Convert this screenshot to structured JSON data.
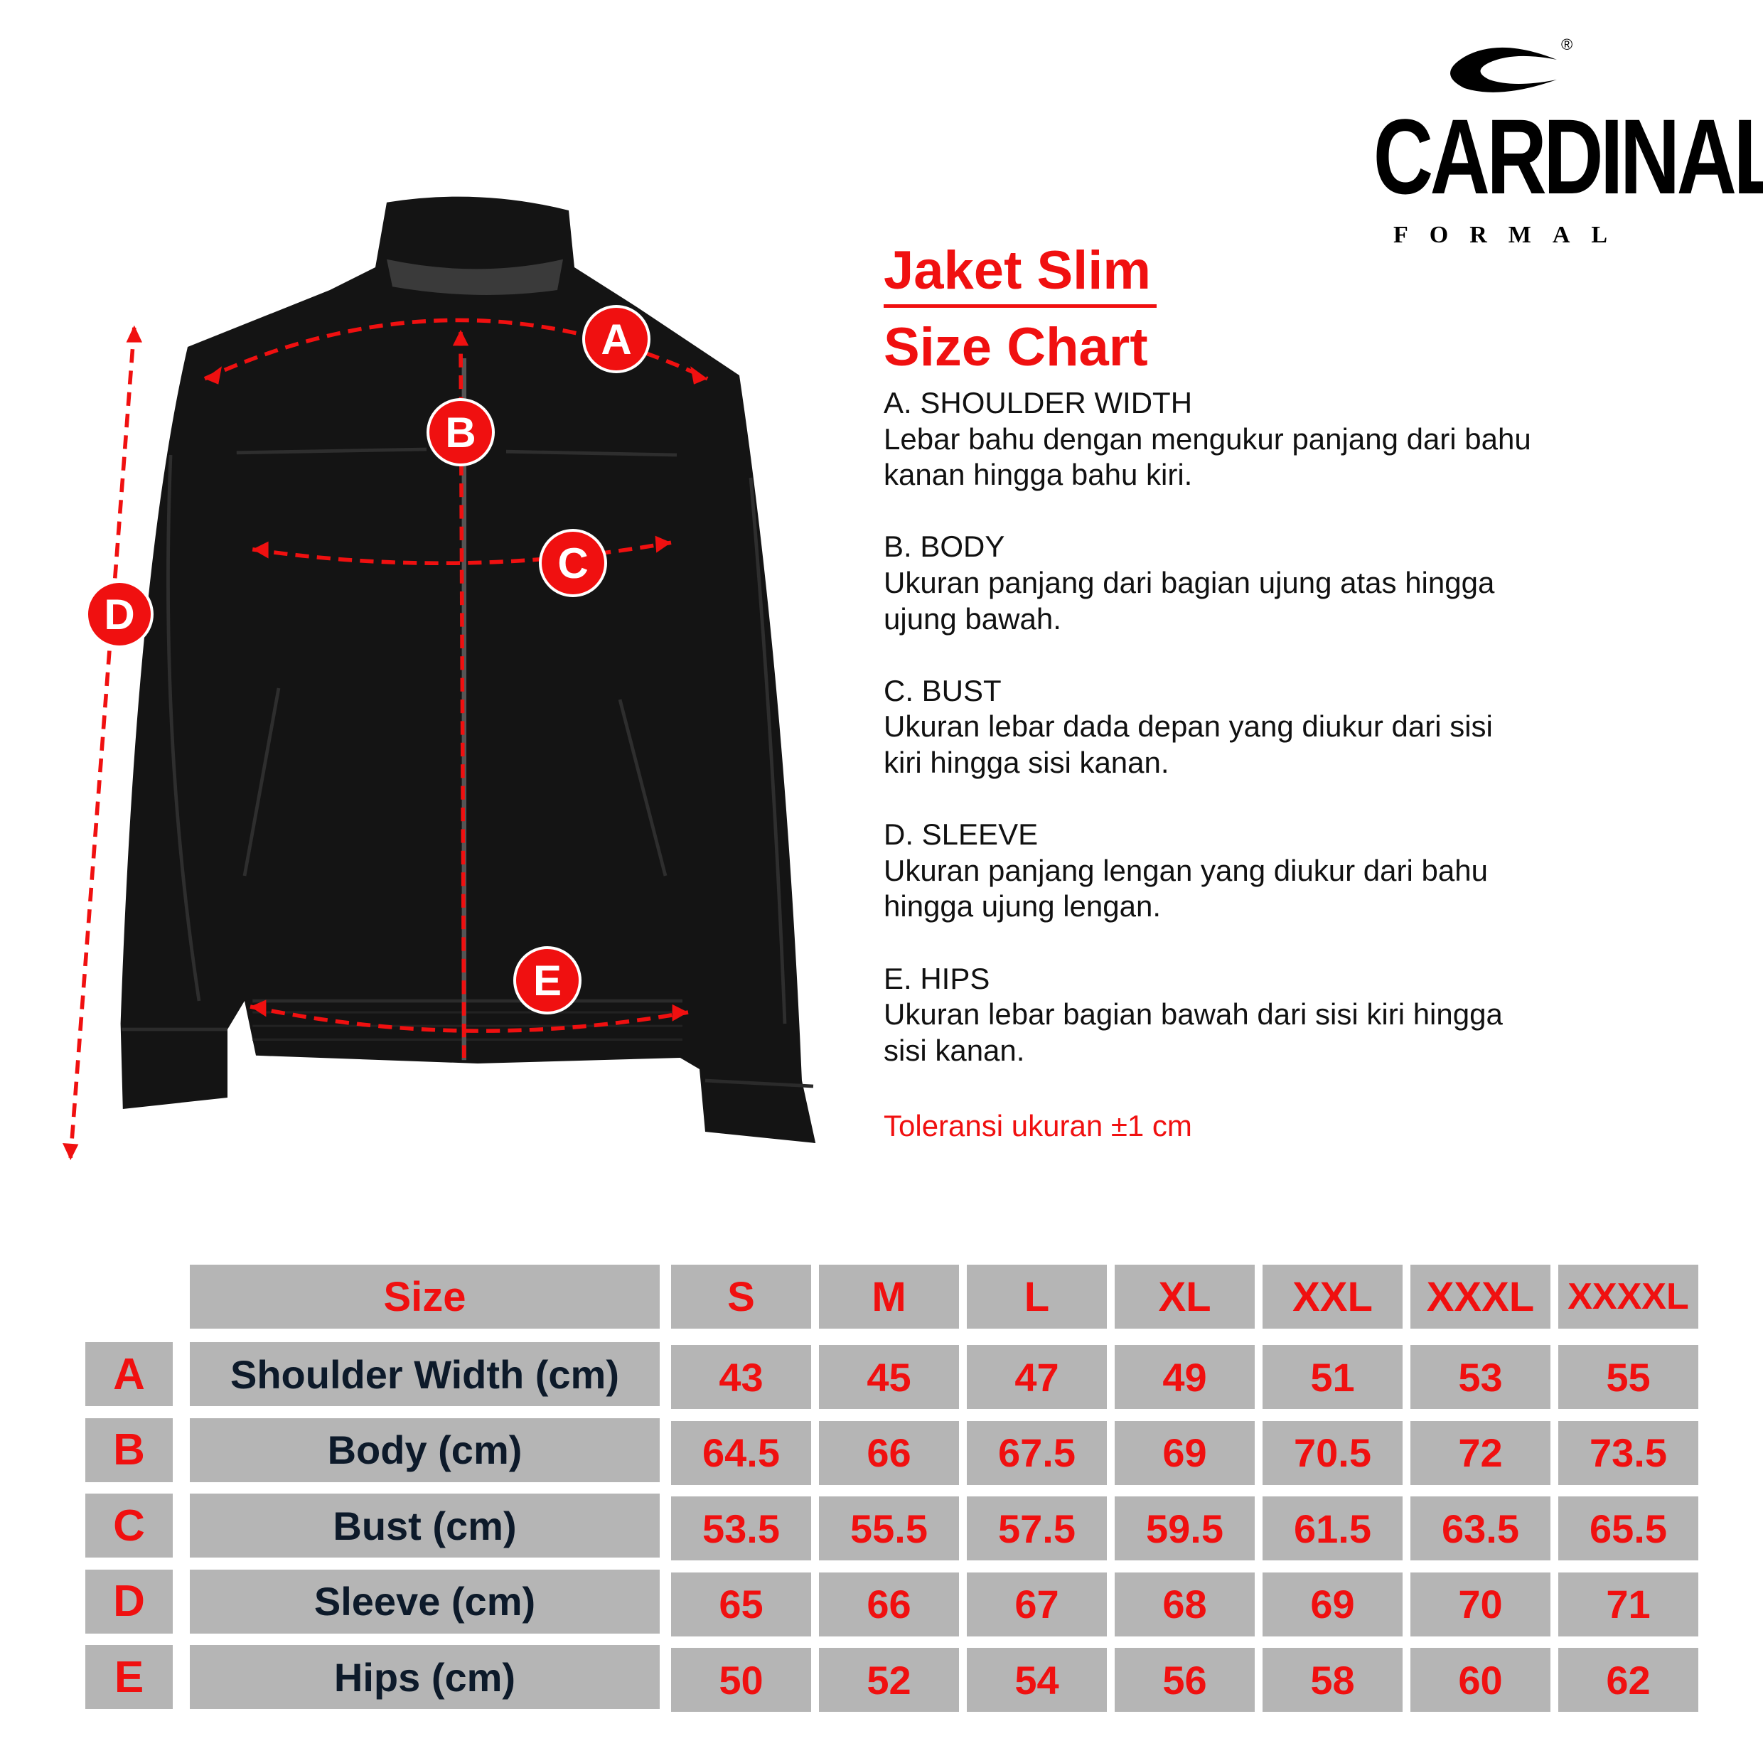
{
  "brand": {
    "logo_text": "CARDINAL",
    "logo_sub": "FORMAL",
    "registered": "®"
  },
  "title": "Jaket Slim",
  "subtitle": "Size Chart",
  "markers": [
    "A",
    "B",
    "C",
    "D",
    "E"
  ],
  "descriptions": [
    {
      "heading": "A. SHOULDER WIDTH",
      "lines": [
        "Lebar bahu dengan mengukur panjang dari bahu",
        "kanan hingga bahu kiri."
      ]
    },
    {
      "heading": "B. BODY",
      "lines": [
        "Ukuran panjang dari bagian ujung atas hingga",
        "ujung bawah."
      ]
    },
    {
      "heading": "C. BUST",
      "lines": [
        "Ukuran lebar dada depan yang diukur dari sisi",
        "kiri hingga sisi kanan."
      ]
    },
    {
      "heading": "D. SLEEVE",
      "lines": [
        "Ukuran panjang lengan yang diukur dari bahu",
        "hingga ujung lengan."
      ]
    },
    {
      "heading": "E. HIPS",
      "lines": [
        "Ukuran lebar bagian bawah dari sisi kiri hingga",
        "sisi kanan."
      ]
    }
  ],
  "tolerance": "Toleransi ukuran ±1 cm",
  "colors": {
    "accent": "#f01010",
    "cell": "#b5b5b5",
    "jacket": "#141414"
  },
  "chart_data": {
    "type": "table",
    "header_label": "Size",
    "columns": [
      "S",
      "M",
      "L",
      "XL",
      "XXL",
      "XXXL",
      "XXXXL"
    ],
    "rows": [
      {
        "key": "A",
        "label": "Shoulder Width (cm)",
        "values": [
          "43",
          "45",
          "47",
          "49",
          "51",
          "53",
          "55"
        ]
      },
      {
        "key": "B",
        "label": "Body (cm)",
        "values": [
          "64.5",
          "66",
          "67.5",
          "69",
          "70.5",
          "72",
          "73.5"
        ]
      },
      {
        "key": "C",
        "label": "Bust (cm)",
        "values": [
          "53.5",
          "55.5",
          "57.5",
          "59.5",
          "61.5",
          "63.5",
          "65.5"
        ]
      },
      {
        "key": "D",
        "label": "Sleeve (cm)",
        "values": [
          "65",
          "66",
          "67",
          "68",
          "69",
          "70",
          "71"
        ]
      },
      {
        "key": "E",
        "label": "Hips (cm)",
        "values": [
          "50",
          "52",
          "54",
          "56",
          "58",
          "60",
          "62"
        ]
      }
    ]
  }
}
